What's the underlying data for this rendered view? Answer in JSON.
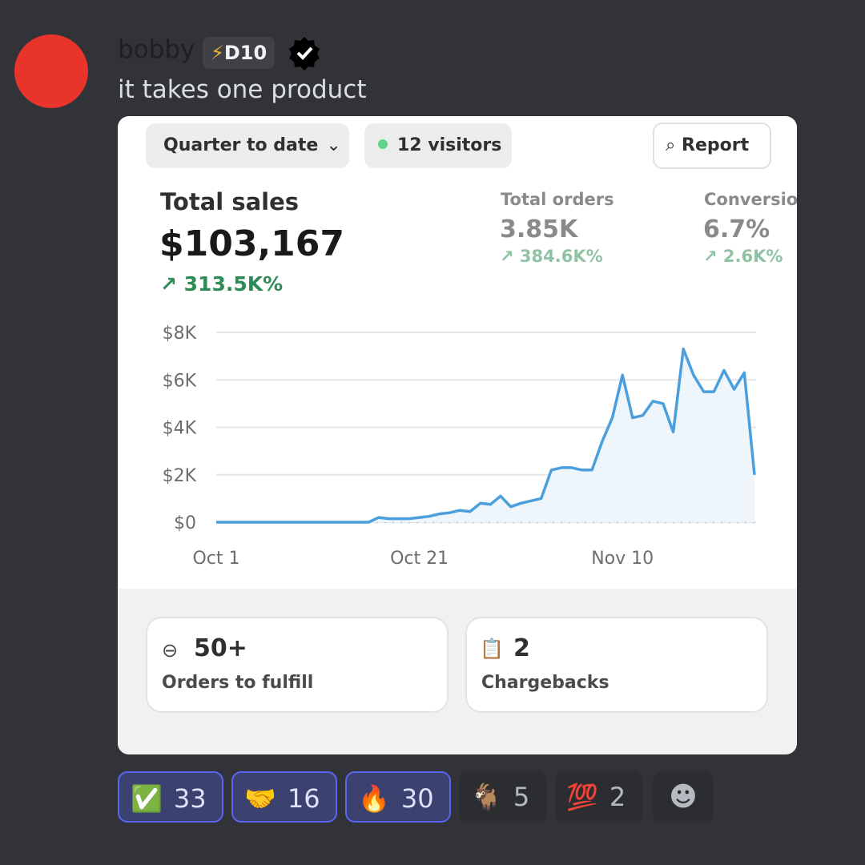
{
  "message": {
    "author": "bobby",
    "tag": "D10",
    "text": "it takes one product"
  },
  "dashboard": {
    "range_button": "Quarter to date",
    "visitors": "12 visitors",
    "report_button": "Report",
    "metrics": [
      {
        "label": "Total sales",
        "value": "$103,167",
        "change": "313.5K%"
      },
      {
        "label": "Total orders",
        "value": "3.85K",
        "change": "384.6K%"
      },
      {
        "label": "Conversio",
        "value": "6.7%",
        "change": "2.6K%"
      }
    ],
    "cards": [
      {
        "value": "50+",
        "label": "Orders to fulfill"
      },
      {
        "value": "2",
        "label": "Chargebacks"
      }
    ]
  },
  "chart_data": {
    "type": "line",
    "categories": [
      "Oct 1",
      null,
      null,
      null,
      null,
      null,
      null,
      null,
      null,
      null,
      null,
      null,
      null,
      null,
      null,
      null,
      null,
      null,
      null,
      null,
      "Oct 21",
      null,
      null,
      null,
      null,
      null,
      null,
      null,
      null,
      null,
      null,
      null,
      null,
      null,
      null,
      null,
      null,
      null,
      null,
      null,
      "Nov 10",
      null,
      null,
      null,
      null,
      null,
      null,
      null,
      null,
      null,
      null,
      null,
      null,
      null
    ],
    "series": [
      {
        "color": "#4a9fdc",
        "values": [
          0,
          0,
          0,
          0,
          0,
          0,
          0,
          0,
          0,
          0,
          0,
          0,
          0,
          0,
          0,
          0,
          200,
          150,
          150,
          150,
          200,
          250,
          350,
          400,
          500,
          450,
          800,
          750,
          1100,
          650,
          800,
          900,
          1000,
          2200,
          2300,
          2300,
          2200,
          2200,
          3400,
          4400,
          6200,
          4400,
          4500,
          5100,
          5000,
          3800,
          7300,
          6200,
          5500,
          5500,
          6400,
          5600,
          6300,
          2000
        ]
      },
      {
        "color": "#9cc9ec",
        "dashed": true,
        "values": [
          0,
          0,
          0,
          0,
          0,
          0,
          0,
          0,
          0,
          0,
          0,
          0,
          0,
          0,
          0,
          0,
          0,
          0,
          0,
          0,
          0,
          0,
          0,
          0,
          0,
          0,
          0,
          0,
          0,
          0,
          0,
          0,
          0,
          0,
          0,
          0,
          0,
          0,
          0,
          0,
          0,
          0,
          0,
          0,
          0,
          0,
          0,
          0,
          0,
          0,
          0,
          0,
          0,
          0
        ]
      }
    ],
    "ylim": [
      0,
      8000
    ],
    "yticks": [
      {
        "value": 0,
        "label": "$0"
      },
      {
        "value": 2000,
        "label": "$2K"
      },
      {
        "value": 4000,
        "label": "$4K"
      },
      {
        "value": 6000,
        "label": "$6K"
      },
      {
        "value": 8000,
        "label": "$8K"
      }
    ],
    "grid": true
  },
  "reactions": [
    {
      "emoji": "✅",
      "count": 33,
      "active": true
    },
    {
      "emoji": "🤝",
      "count": 16,
      "active": true
    },
    {
      "emoji": "🔥",
      "count": 30,
      "active": true
    },
    {
      "emoji": "🐐",
      "count": 5,
      "active": false
    },
    {
      "emoji": "💯",
      "count": 2,
      "active": false
    }
  ]
}
